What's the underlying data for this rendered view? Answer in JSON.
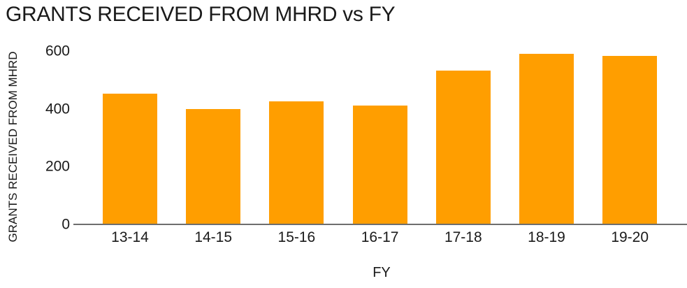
{
  "chart": {
    "title": "GRANTS RECEIVED FROM MHRD vs FY",
    "ylabel": "GRANTS RECEIVED FROM MHRD",
    "xlabel": "FY"
  },
  "colors": {
    "bar": "#FF9E00",
    "axis_line": "#6e6e6e",
    "text": "#1a1a1a",
    "background": "#ffffff"
  },
  "chart_data": {
    "type": "bar",
    "title": "GRANTS RECEIVED FROM MHRD vs FY",
    "categories": [
      "13-14",
      "14-15",
      "15-16",
      "16-17",
      "17-18",
      "18-19",
      "19-20"
    ],
    "values": [
      452,
      398,
      426,
      412,
      532,
      591,
      584
    ],
    "xlabel": "FY",
    "ylabel": "GRANTS RECEIVED FROM MHRD",
    "ylim": [
      0,
      600
    ],
    "yticks": [
      0,
      200,
      400,
      600
    ],
    "grid": false,
    "legend": false,
    "bar_color": "#FF9E00"
  }
}
